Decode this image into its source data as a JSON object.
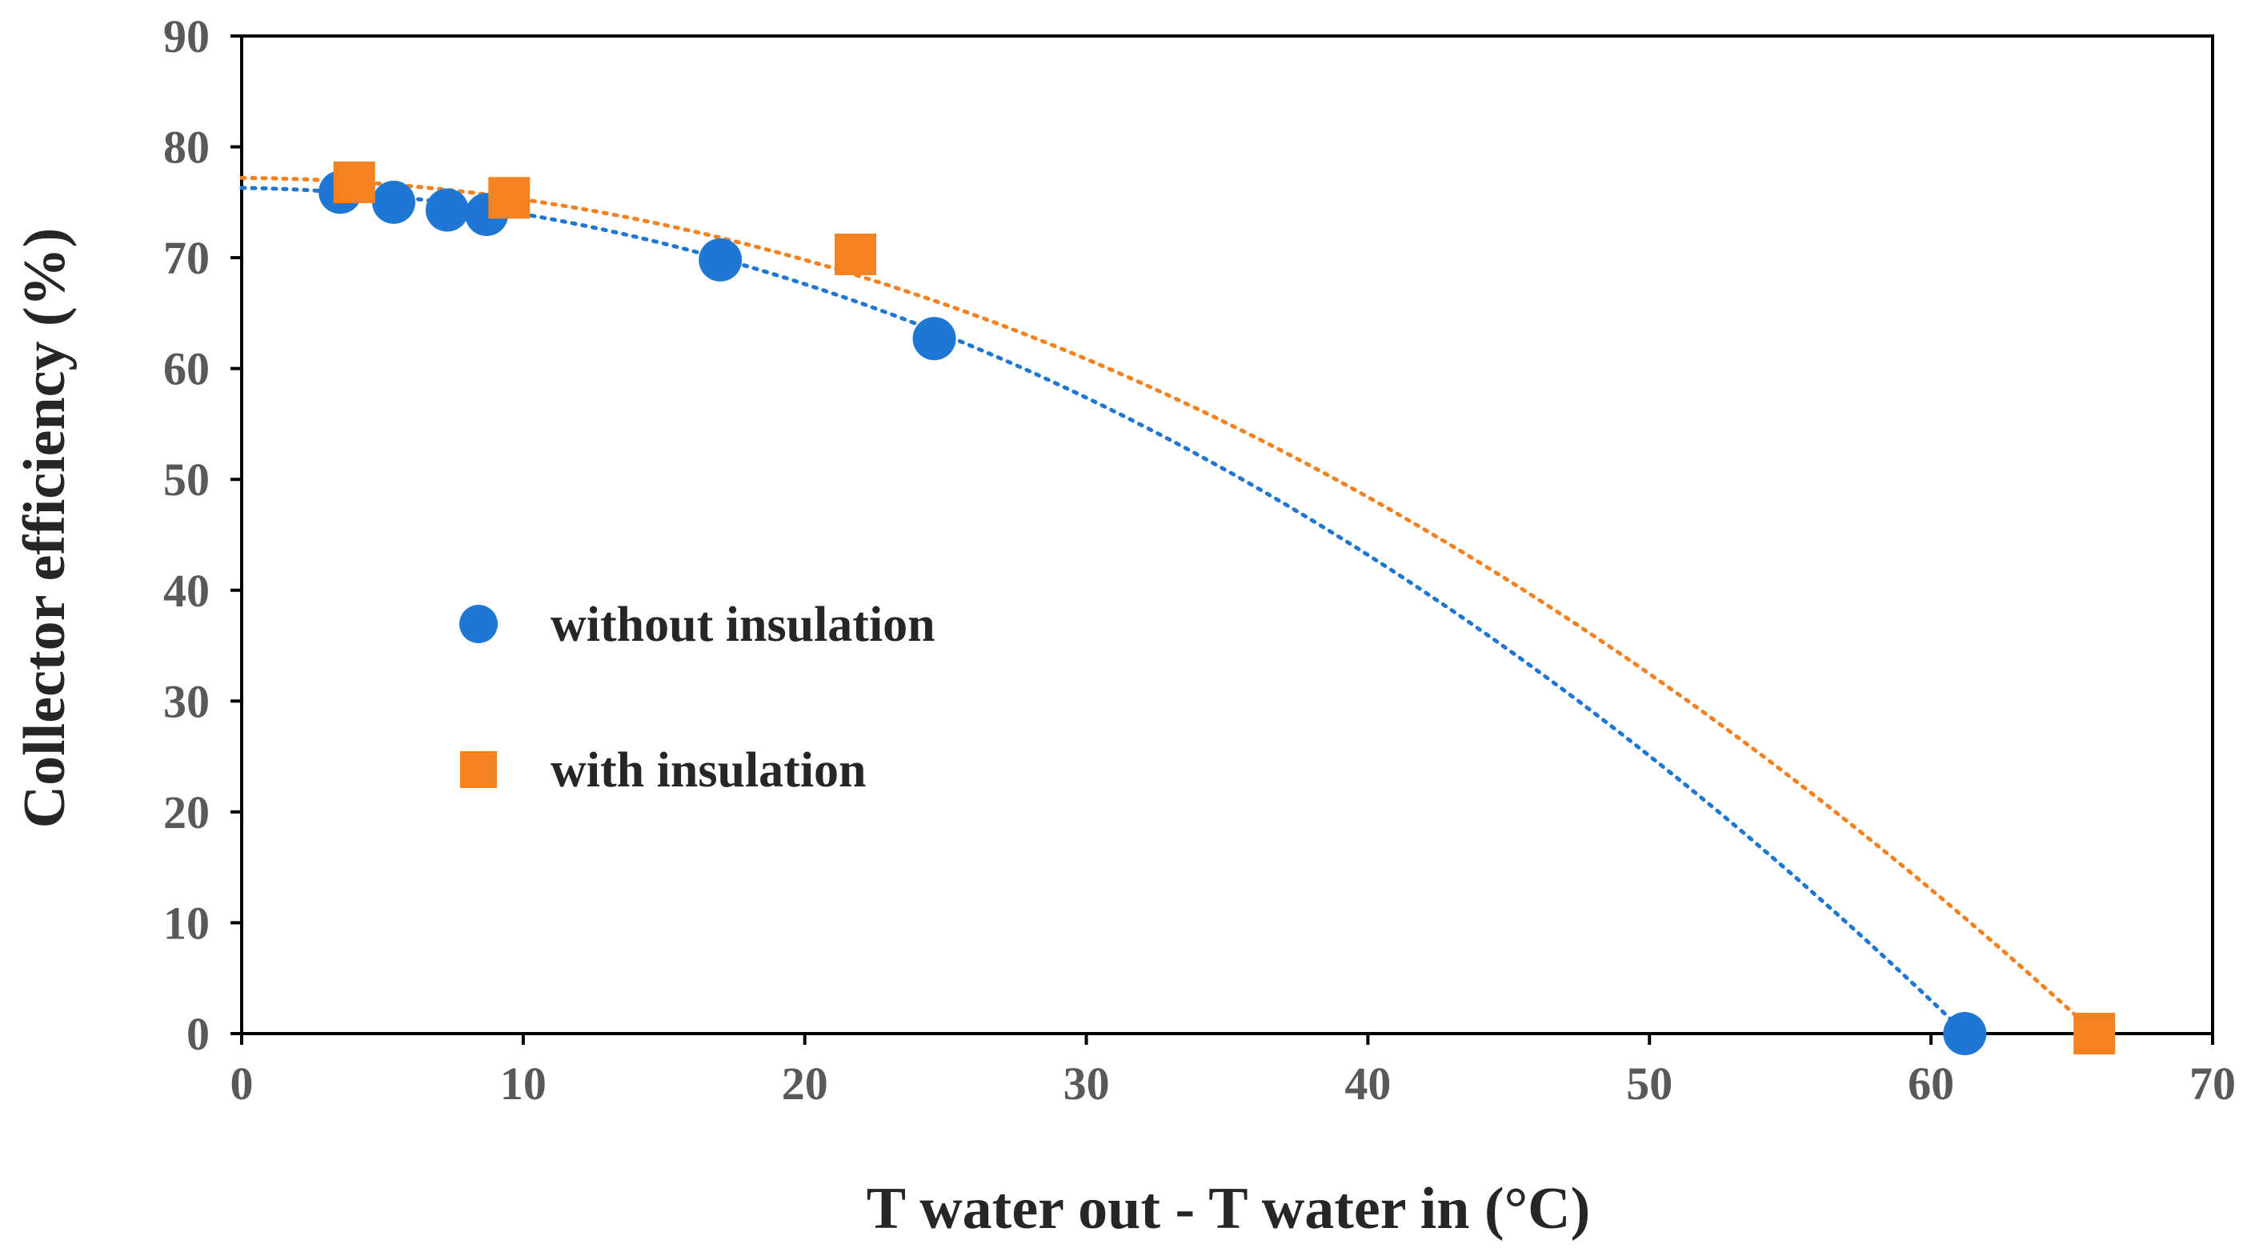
{
  "chart_data": {
    "type": "scatter",
    "title": "",
    "xlabel": "T water out - T water in (°C)",
    "ylabel": "Collector efficiency (%)",
    "xlim": [
      0,
      70
    ],
    "ylim": [
      0,
      90
    ],
    "xticks": [
      0,
      10,
      20,
      30,
      40,
      50,
      60,
      70
    ],
    "yticks": [
      0,
      10,
      20,
      30,
      40,
      50,
      60,
      70,
      80,
      90
    ],
    "grid": false,
    "legend_position": "center-left",
    "series": [
      {
        "name": "without insulation",
        "marker": "circle",
        "color": "#1f77d4",
        "x": [
          3.5,
          5.4,
          7.3,
          8.7,
          17.0,
          24.6,
          61.2
        ],
        "y": [
          75.9,
          75.0,
          74.3,
          73.9,
          69.8,
          62.7,
          0.0
        ],
        "trendline": {
          "style": "dotted",
          "type": "polynomial",
          "x": [
            0,
            61.2
          ],
          "coefficients": [
            76.3,
            -0.04,
            -0.0197
          ]
        }
      },
      {
        "name": "with insulation",
        "marker": "square",
        "color": "#f58220",
        "x": [
          4.0,
          9.5,
          21.8,
          65.8
        ],
        "y": [
          76.8,
          75.4,
          70.3,
          0.0
        ],
        "trendline": {
          "style": "dotted",
          "type": "polynomial",
          "x": [
            0,
            65.8
          ],
          "coefficients": [
            77.2,
            -0.02,
            -0.0175
          ]
        }
      }
    ]
  }
}
